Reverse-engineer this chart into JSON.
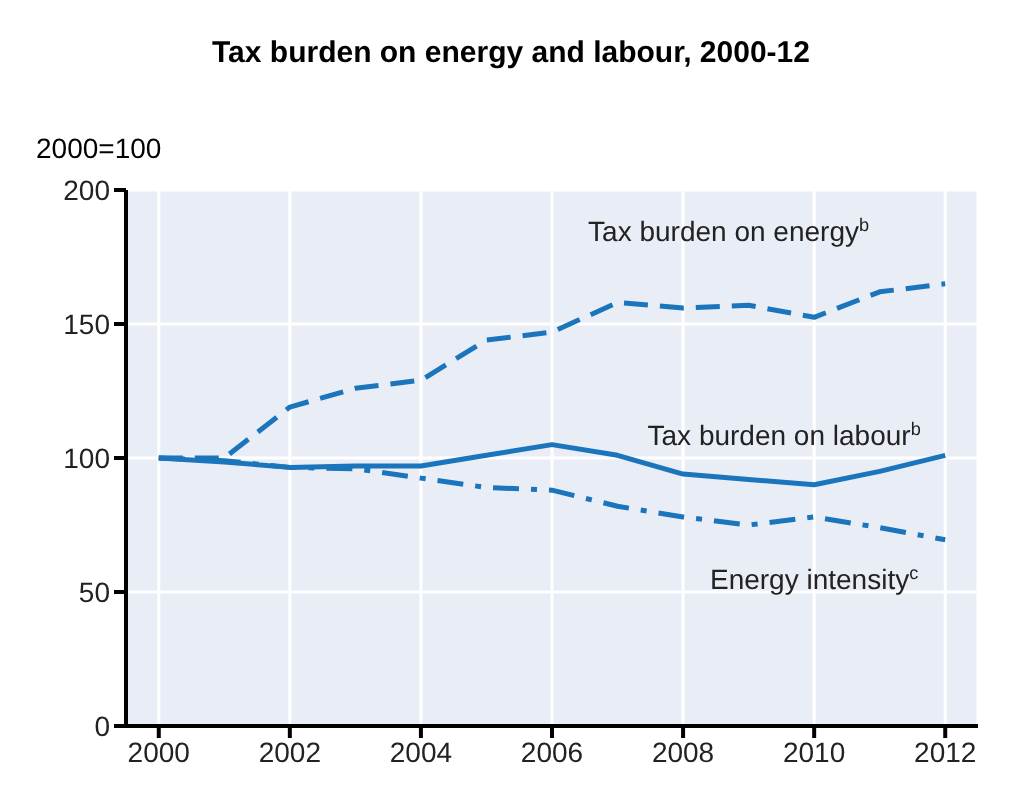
{
  "chart_data": {
    "type": "line",
    "title": "Tax burden on energy and labour, 2000-12",
    "ylabel": "2000=100",
    "x": [
      2000,
      2001,
      2002,
      2003,
      2004,
      2005,
      2006,
      2007,
      2008,
      2009,
      2010,
      2011,
      2012
    ],
    "xlim": [
      1999.5,
      2012.5
    ],
    "xticks": [
      2000,
      2002,
      2004,
      2006,
      2008,
      2010,
      2012
    ],
    "ylim": [
      0,
      200
    ],
    "yticks": [
      0,
      50,
      100,
      150,
      200
    ],
    "grid": true,
    "marker": "none",
    "series": [
      {
        "name": "Tax burden on energy$^{b}$",
        "color": "#1b75bc",
        "line_style": "dashed",
        "values": [
          100,
          100,
          119,
          126,
          129,
          144,
          147,
          158,
          156,
          157,
          152.5,
          162,
          165
        ]
      },
      {
        "name": "Tax burden on labour$^{b}$",
        "color": "#1b75bc",
        "line_style": "solid",
        "values": [
          100,
          98.5,
          96.5,
          97,
          97,
          101,
          105,
          101,
          94,
          92,
          90,
          95,
          101
        ]
      },
      {
        "name": "Energy intensity$^{c}$",
        "color": "#1b75bc",
        "line_style": "dashdot",
        "values": [
          100,
          99,
          96.5,
          96,
          92.5,
          89,
          88,
          82,
          78,
          75,
          78,
          74,
          69.5
        ]
      }
    ]
  }
}
